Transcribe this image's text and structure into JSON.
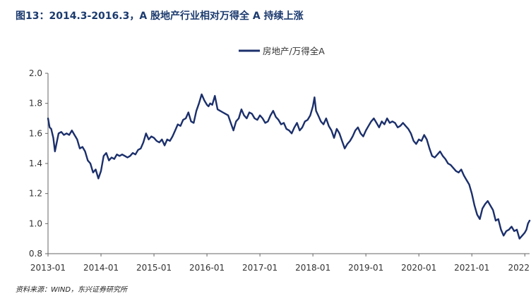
{
  "figure": {
    "title": "图13：2014.3-2016.3，A 股地产行业相对万得全 A 持续上涨",
    "source": "资料来源：WIND，东兴证券研究所"
  },
  "chart_data": {
    "type": "line",
    "title": "",
    "xlabel": "",
    "ylabel": "",
    "x_ticks": [
      "2013-01",
      "2014-01",
      "2015-01",
      "2016-01",
      "2017-01",
      "2018-01",
      "2019-01",
      "2020-01",
      "2021-01",
      "2022"
    ],
    "y_ticks": [
      "0.8",
      "1.0",
      "1.2",
      "1.4",
      "1.6",
      "1.8",
      "2.0"
    ],
    "xlim": [
      2013.0,
      2022.09
    ],
    "ylim": [
      0.8,
      2.0
    ],
    "grid": false,
    "legend": "top-center",
    "series": [
      {
        "name": "房地产/万得全A",
        "color": "#1b2f6b",
        "x": [
          2013.0,
          2013.03,
          2013.06,
          2013.1,
          2013.13,
          2013.17,
          2013.2,
          2013.25,
          2013.3,
          2013.35,
          2013.4,
          2013.45,
          2013.5,
          2013.55,
          2013.6,
          2013.65,
          2013.7,
          2013.75,
          2013.8,
          2013.85,
          2013.9,
          2013.95,
          2014.0,
          2014.05,
          2014.1,
          2014.15,
          2014.2,
          2014.25,
          2014.3,
          2014.35,
          2014.4,
          2014.45,
          2014.5,
          2014.55,
          2014.6,
          2014.65,
          2014.7,
          2014.75,
          2014.8,
          2014.85,
          2014.9,
          2014.95,
          2015.0,
          2015.05,
          2015.1,
          2015.15,
          2015.2,
          2015.25,
          2015.3,
          2015.35,
          2015.4,
          2015.45,
          2015.5,
          2015.55,
          2015.6,
          2015.65,
          2015.7,
          2015.75,
          2015.8,
          2015.85,
          2015.9,
          2015.95,
          2016.0,
          2016.03,
          2016.06,
          2016.1,
          2016.15,
          2016.2,
          2016.25,
          2016.3,
          2016.35,
          2016.4,
          2016.45,
          2016.5,
          2016.55,
          2016.6,
          2016.65,
          2016.7,
          2016.75,
          2016.8,
          2016.85,
          2016.9,
          2016.95,
          2017.0,
          2017.05,
          2017.1,
          2017.15,
          2017.2,
          2017.25,
          2017.3,
          2017.35,
          2017.4,
          2017.45,
          2017.5,
          2017.55,
          2017.6,
          2017.65,
          2017.7,
          2017.75,
          2017.8,
          2017.85,
          2017.9,
          2017.95,
          2018.0,
          2018.03,
          2018.06,
          2018.1,
          2018.15,
          2018.2,
          2018.25,
          2018.3,
          2018.35,
          2018.4,
          2018.45,
          2018.5,
          2018.55,
          2018.6,
          2018.65,
          2018.7,
          2018.75,
          2018.8,
          2018.85,
          2018.9,
          2018.95,
          2019.0,
          2019.05,
          2019.1,
          2019.15,
          2019.2,
          2019.25,
          2019.3,
          2019.35,
          2019.4,
          2019.45,
          2019.5,
          2019.55,
          2019.6,
          2019.65,
          2019.7,
          2019.75,
          2019.8,
          2019.85,
          2019.9,
          2019.95,
          2020.0,
          2020.05,
          2020.1,
          2020.15,
          2020.2,
          2020.25,
          2020.3,
          2020.35,
          2020.4,
          2020.45,
          2020.5,
          2020.55,
          2020.6,
          2020.65,
          2020.7,
          2020.75,
          2020.8,
          2020.85,
          2020.9,
          2020.95,
          2021.0,
          2021.05,
          2021.1,
          2021.15,
          2021.2,
          2021.25,
          2021.3,
          2021.35,
          2021.4,
          2021.45,
          2021.5,
          2021.55,
          2021.6,
          2021.65,
          2021.7,
          2021.75,
          2021.8,
          2021.85,
          2021.9,
          2021.95,
          2022.0,
          2022.03,
          2022.06,
          2022.09
        ],
        "values": [
          1.7,
          1.64,
          1.63,
          1.57,
          1.48,
          1.55,
          1.6,
          1.61,
          1.59,
          1.6,
          1.59,
          1.62,
          1.59,
          1.56,
          1.5,
          1.51,
          1.48,
          1.42,
          1.4,
          1.34,
          1.36,
          1.3,
          1.35,
          1.45,
          1.47,
          1.42,
          1.44,
          1.43,
          1.46,
          1.45,
          1.46,
          1.45,
          1.44,
          1.45,
          1.47,
          1.46,
          1.49,
          1.5,
          1.54,
          1.6,
          1.56,
          1.58,
          1.57,
          1.55,
          1.54,
          1.56,
          1.52,
          1.56,
          1.55,
          1.58,
          1.62,
          1.66,
          1.65,
          1.69,
          1.7,
          1.74,
          1.68,
          1.67,
          1.75,
          1.8,
          1.86,
          1.82,
          1.79,
          1.78,
          1.8,
          1.79,
          1.85,
          1.76,
          1.75,
          1.74,
          1.73,
          1.72,
          1.67,
          1.62,
          1.68,
          1.7,
          1.76,
          1.72,
          1.7,
          1.74,
          1.73,
          1.7,
          1.69,
          1.72,
          1.7,
          1.67,
          1.68,
          1.72,
          1.75,
          1.71,
          1.69,
          1.66,
          1.67,
          1.63,
          1.62,
          1.6,
          1.64,
          1.67,
          1.62,
          1.64,
          1.68,
          1.69,
          1.72,
          1.78,
          1.84,
          1.75,
          1.72,
          1.68,
          1.66,
          1.7,
          1.65,
          1.62,
          1.57,
          1.63,
          1.6,
          1.55,
          1.5,
          1.53,
          1.55,
          1.58,
          1.62,
          1.64,
          1.6,
          1.58,
          1.62,
          1.65,
          1.68,
          1.7,
          1.67,
          1.64,
          1.68,
          1.66,
          1.7,
          1.67,
          1.68,
          1.67,
          1.64,
          1.65,
          1.67,
          1.65,
          1.63,
          1.6,
          1.55,
          1.53,
          1.56,
          1.55,
          1.59,
          1.56,
          1.5,
          1.45,
          1.44,
          1.46,
          1.48,
          1.45,
          1.43,
          1.4,
          1.39,
          1.37,
          1.35,
          1.34,
          1.36,
          1.32,
          1.29,
          1.26,
          1.2,
          1.12,
          1.06,
          1.03,
          1.1,
          1.13,
          1.15,
          1.12,
          1.09,
          1.02,
          1.03,
          0.96,
          0.92,
          0.95,
          0.96,
          0.98,
          0.95,
          0.96,
          0.9,
          0.92,
          0.94,
          0.96,
          1.0,
          1.02
        ]
      }
    ]
  }
}
